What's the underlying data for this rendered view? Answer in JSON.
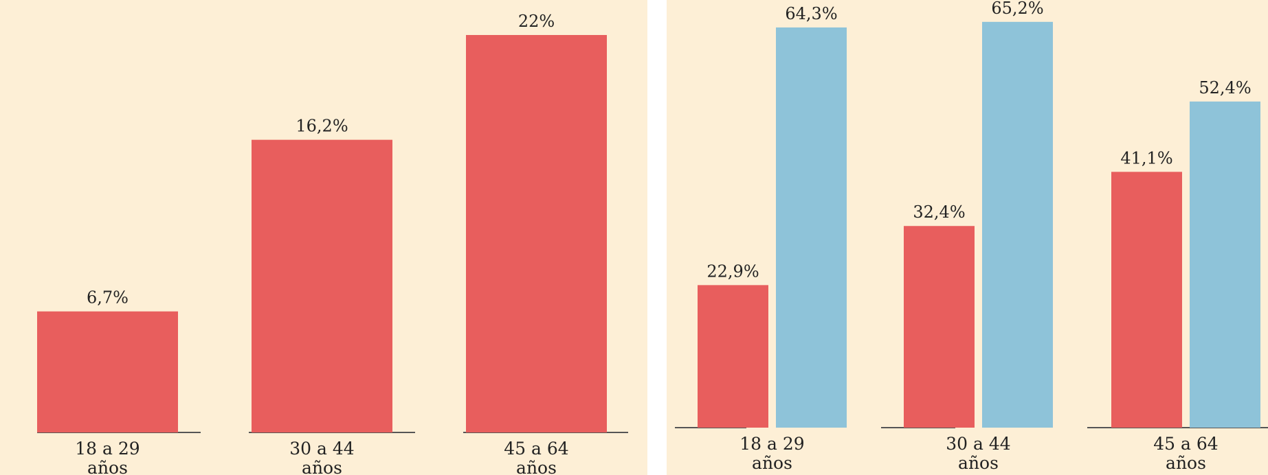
{
  "colors": {
    "background": "#fdefd6",
    "series_red": "#e85e5d",
    "series_blue": "#8ec3d9",
    "axis": "#555555",
    "text": "#222222"
  },
  "chart_data": [
    {
      "type": "bar",
      "categories": [
        "18 a 29 años",
        "30 a 44 años",
        "45 a 64 años"
      ],
      "category_lines": [
        [
          "18 a 29",
          "años"
        ],
        [
          "30 a 44",
          "años"
        ],
        [
          "45 a 64",
          "años"
        ]
      ],
      "series": [
        {
          "color": "#e85e5d",
          "values": [
            6.7,
            16.2,
            22
          ],
          "labels": [
            "6,7%",
            "16,2%",
            "22%"
          ]
        }
      ],
      "title": "",
      "xlabel": "",
      "ylabel": "",
      "ylim": [
        0,
        22
      ],
      "grid": false
    },
    {
      "type": "bar",
      "categories": [
        "18 a 29 años",
        "30 a 44 años",
        "45 a 64 años"
      ],
      "category_lines": [
        [
          "18 a 29",
          "años"
        ],
        [
          "30 a 44",
          "años"
        ],
        [
          "45 a 64",
          "años"
        ]
      ],
      "series": [
        {
          "color": "#e85e5d",
          "values": [
            22.9,
            32.4,
            41.1
          ],
          "labels": [
            "22,9%",
            "32,4%",
            "41,1%"
          ]
        },
        {
          "color": "#8ec3d9",
          "values": [
            64.3,
            65.2,
            52.4
          ],
          "labels": [
            "64,3%",
            "65,2%",
            "52,4%"
          ]
        }
      ],
      "title": "",
      "xlabel": "",
      "ylabel": "",
      "ylim": [
        0,
        64.3
      ],
      "grid": false
    }
  ]
}
